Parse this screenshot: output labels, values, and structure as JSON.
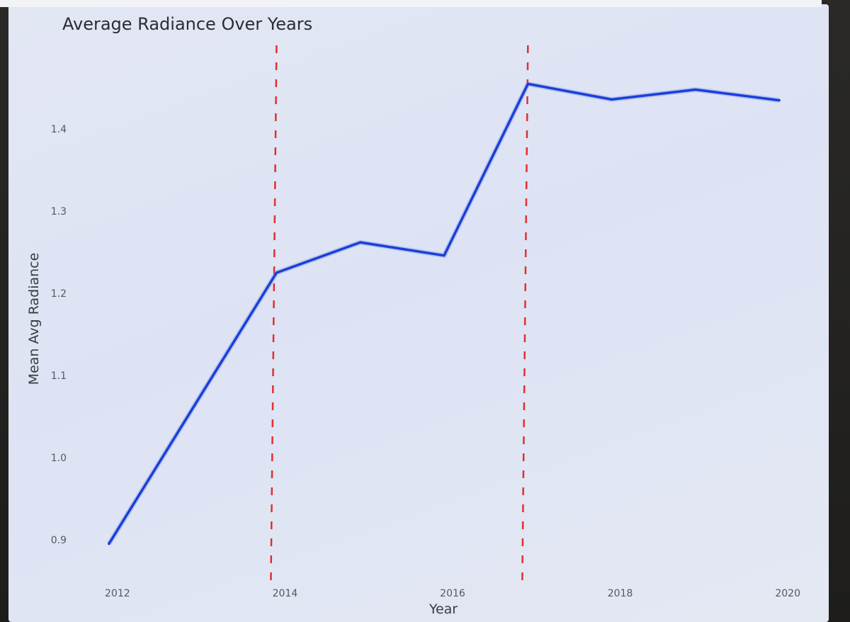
{
  "chart_data": {
    "type": "line",
    "title": "Average Radiance Over Years",
    "xlabel": "Year",
    "ylabel": "Mean Avg Radiance",
    "xlim": [
      2011.9,
      2020.1
    ],
    "ylim": [
      0.88,
      1.47
    ],
    "x_ticks": [
      2012,
      2014,
      2016,
      2018,
      2020
    ],
    "y_ticks": [
      0.9,
      1.0,
      1.1,
      1.2,
      1.3,
      1.4
    ],
    "grid": false,
    "series": [
      {
        "color": "#1a3fd6",
        "x": [
          2012,
          2013,
          2014,
          2015,
          2016,
          2017,
          2018,
          2019,
          2020
        ],
        "y": [
          0.895,
          1.06,
          1.225,
          1.262,
          1.246,
          1.455,
          1.436,
          1.448,
          1.435
        ]
      }
    ],
    "vlines": [
      {
        "x": 2014,
        "color": "#e0302e",
        "style": "dashed"
      },
      {
        "x": 2017,
        "color": "#e0302e",
        "style": "dashed"
      }
    ]
  }
}
